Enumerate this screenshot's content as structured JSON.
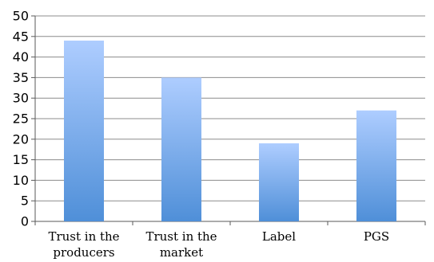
{
  "chart_data": {
    "type": "bar",
    "categories": [
      [
        "Trust in the",
        "producers"
      ],
      [
        "Trust in the",
        "market"
      ],
      [
        "Label"
      ],
      [
        "PGS"
      ]
    ],
    "values": [
      44,
      35,
      19,
      27
    ],
    "title": "",
    "xlabel": "",
    "ylabel": "",
    "ylim": [
      0,
      50
    ],
    "yticks": [
      0,
      5,
      10,
      15,
      20,
      25,
      30,
      35,
      40,
      45,
      50
    ],
    "grid": true,
    "legend": "none",
    "colors": {
      "bar_top": "#aecdff",
      "bar_bottom": "#4f8fd8",
      "grid": "#8c8c8c",
      "axis": "#5a5a5a"
    }
  }
}
